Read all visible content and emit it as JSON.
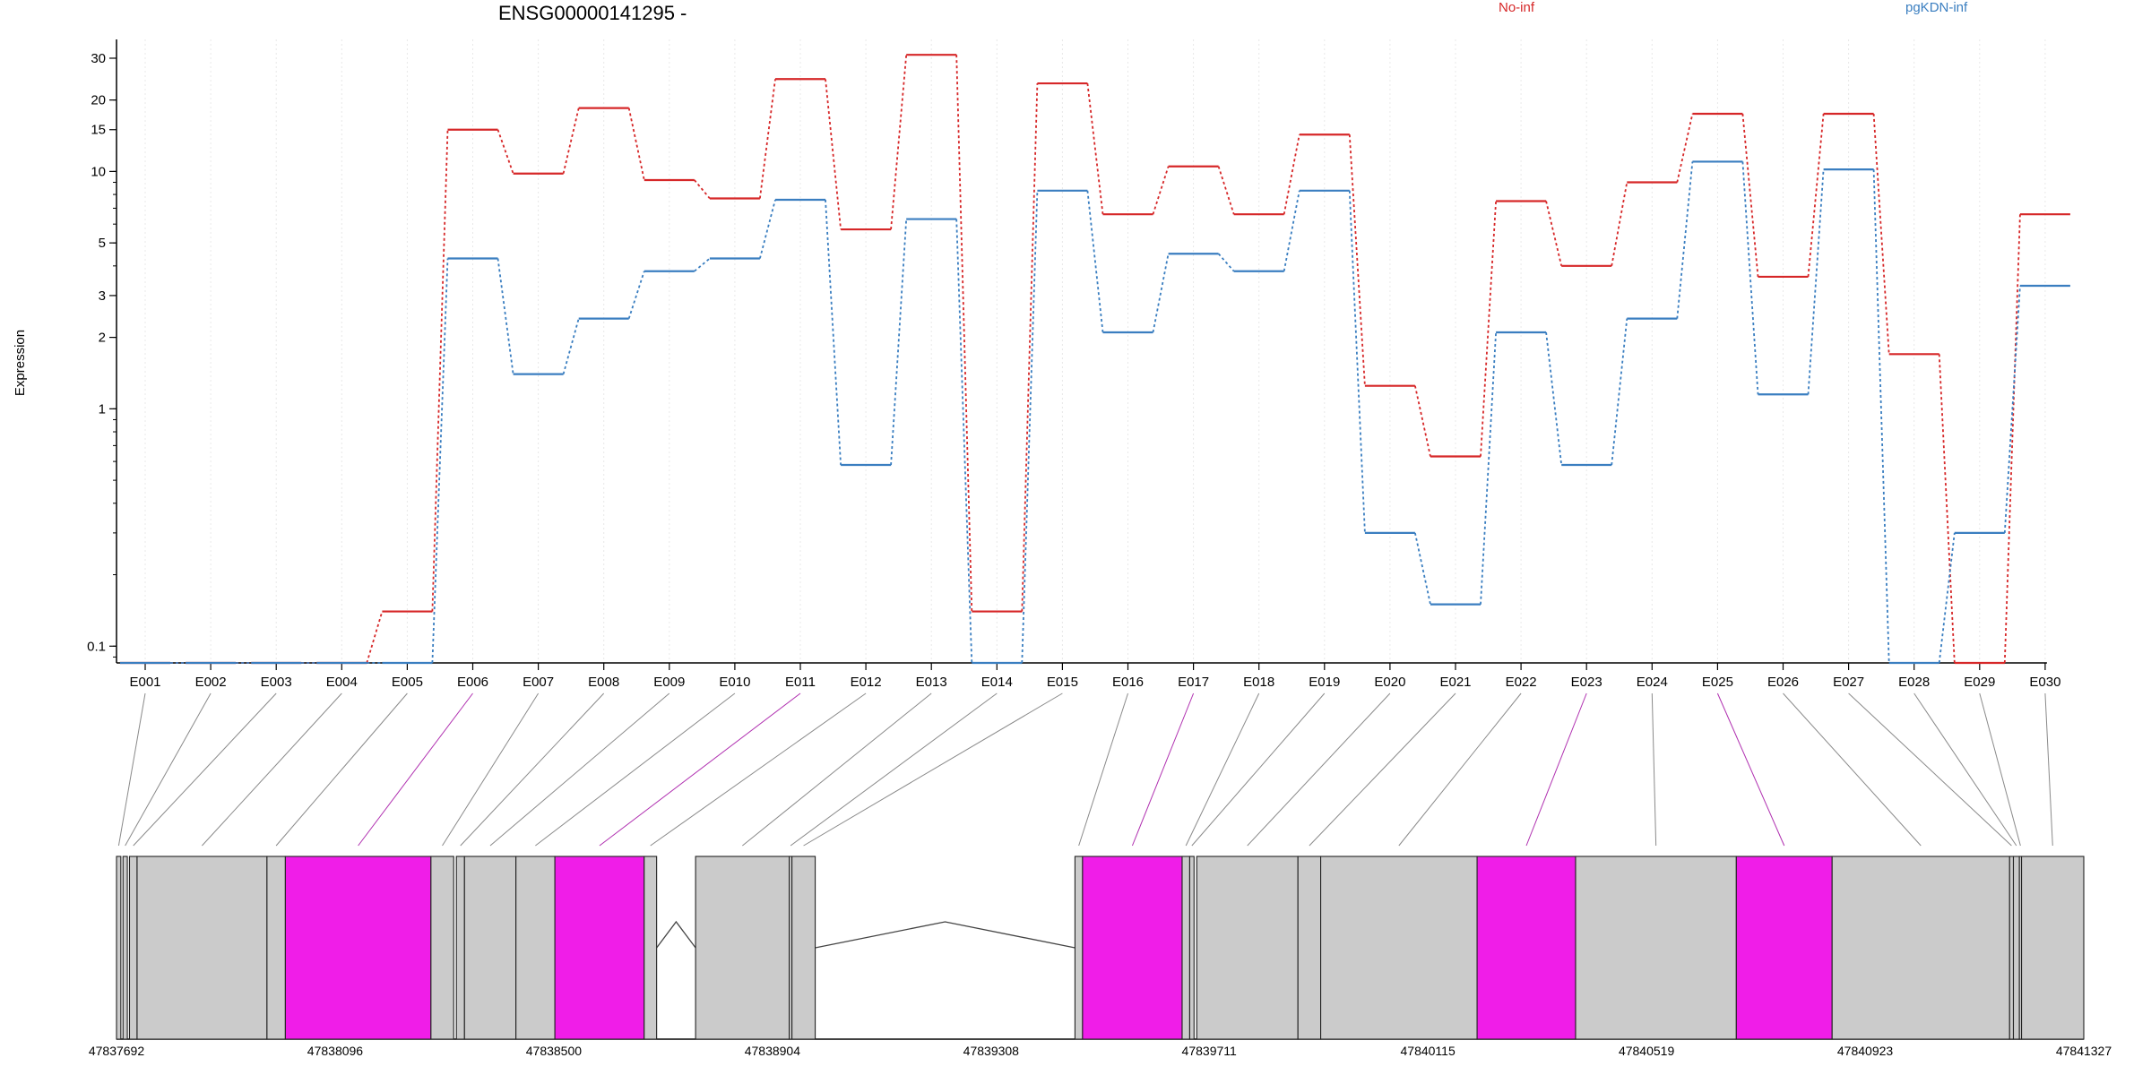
{
  "chart_data": {
    "type": "line",
    "title": "ENSG00000141295 -",
    "xlabel": "",
    "ylabel": "Expression",
    "yscale": "log",
    "ylim": [
      0.085,
      36
    ],
    "yticks": [
      0.1,
      1,
      2,
      3,
      5,
      10,
      15,
      20,
      30
    ],
    "grid": true,
    "legend_position": "top",
    "categories": [
      "E001",
      "E002",
      "E003",
      "E004",
      "E005",
      "E006",
      "E007",
      "E008",
      "E009",
      "E010",
      "E011",
      "E012",
      "E013",
      "E014",
      "E015",
      "E016",
      "E017",
      "E018",
      "E019",
      "E020",
      "E021",
      "E022",
      "E023",
      "E024",
      "E025",
      "E026",
      "E027",
      "E028",
      "E029",
      "E030"
    ],
    "series": [
      {
        "name": "No-inf",
        "color": "#d62728",
        "values": [
          0.085,
          0.085,
          0.085,
          0.085,
          0.14,
          15,
          9.8,
          18.5,
          9.2,
          7.7,
          24.5,
          5.7,
          31,
          0.14,
          23.5,
          6.6,
          10.5,
          6.6,
          14.3,
          1.25,
          0.63,
          7.5,
          4,
          9,
          17.5,
          3.6,
          17.5,
          1.7,
          0.085,
          6.6
        ]
      },
      {
        "name": "pgKDN-inf",
        "color": "#3a7ec0",
        "values": [
          0.085,
          0.085,
          0.085,
          0.085,
          0.085,
          4.3,
          1.4,
          2.4,
          3.8,
          4.3,
          7.6,
          0.58,
          6.3,
          0.085,
          8.3,
          2.1,
          4.5,
          3.8,
          8.3,
          0.3,
          0.15,
          2.1,
          0.58,
          2.4,
          11,
          1.15,
          10.2,
          0.085,
          0.3,
          3.3
        ]
      }
    ],
    "gene_model": {
      "coordinate_labels": [
        "47837692",
        "47838096",
        "47838500",
        "47838904",
        "47839308",
        "47839711",
        "47840115",
        "47840519",
        "47840923",
        "47841327"
      ],
      "coordinate_range": [
        47837692,
        47841327
      ],
      "exons": [
        {
          "start": 47837692,
          "end": 47837700,
          "highlight": false
        },
        {
          "start": 47837704,
          "end": 47837712,
          "highlight": false
        },
        {
          "start": 47837716,
          "end": 47837730,
          "highlight": false
        },
        {
          "start": 47837730,
          "end": 47837970,
          "highlight": false
        },
        {
          "start": 47837970,
          "end": 47838004,
          "highlight": false
        },
        {
          "start": 47838004,
          "end": 47838273,
          "highlight": true
        },
        {
          "start": 47838273,
          "end": 47838315,
          "highlight": false
        },
        {
          "start": 47838320,
          "end": 47838335,
          "highlight": false
        },
        {
          "start": 47838335,
          "end": 47838430,
          "highlight": false
        },
        {
          "start": 47838430,
          "end": 47838502,
          "highlight": false
        },
        {
          "start": 47838502,
          "end": 47838667,
          "highlight": true
        },
        {
          "start": 47838667,
          "end": 47838690,
          "highlight": false
        },
        {
          "start": 47838762,
          "end": 47838935,
          "highlight": false
        },
        {
          "start": 47838935,
          "end": 47838940,
          "highlight": false
        },
        {
          "start": 47838940,
          "end": 47838983,
          "highlight": false
        },
        {
          "start": 47839463,
          "end": 47839477,
          "highlight": false
        },
        {
          "start": 47839477,
          "end": 47839661,
          "highlight": true
        },
        {
          "start": 47839661,
          "end": 47839675,
          "highlight": false
        },
        {
          "start": 47839675,
          "end": 47839683,
          "highlight": false
        },
        {
          "start": 47839688,
          "end": 47839875,
          "highlight": false
        },
        {
          "start": 47839875,
          "end": 47839917,
          "highlight": false
        },
        {
          "start": 47839917,
          "end": 47840206,
          "highlight": false
        },
        {
          "start": 47840206,
          "end": 47840388,
          "highlight": true
        },
        {
          "start": 47840388,
          "end": 47840685,
          "highlight": false
        },
        {
          "start": 47840685,
          "end": 47840862,
          "highlight": true
        },
        {
          "start": 47840862,
          "end": 47841190,
          "highlight": false
        },
        {
          "start": 47841190,
          "end": 47841197,
          "highlight": false
        },
        {
          "start": 47841197,
          "end": 47841208,
          "highlight": false
        },
        {
          "start": 47841208,
          "end": 47841212,
          "highlight": false
        },
        {
          "start": 47841212,
          "end": 47841327,
          "highlight": false
        }
      ],
      "introns": [
        {
          "start": 47838690,
          "end": 47838762
        },
        {
          "start": 47838983,
          "end": 47839463
        }
      ]
    }
  }
}
